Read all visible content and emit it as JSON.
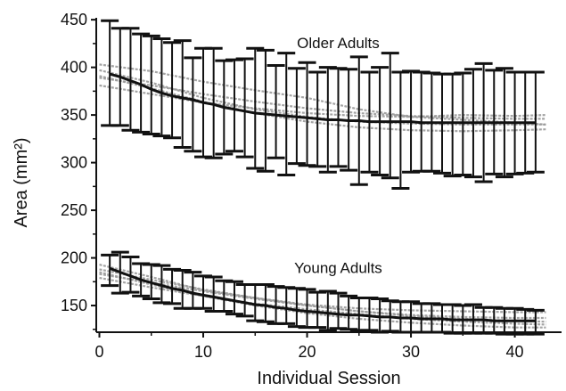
{
  "chart_data": {
    "type": "line",
    "xlabel": "Individual Session",
    "ylabel": "Area (mm²)",
    "xlim": [
      -0.3,
      44.5
    ],
    "ylim": [
      122,
      452
    ],
    "xticks": [
      0,
      10,
      20,
      30,
      40
    ],
    "yticks": [
      150,
      200,
      250,
      300,
      350,
      400,
      450
    ],
    "xtick_labels": [
      "0",
      "10",
      "20",
      "30",
      "40"
    ],
    "ytick_labels": [
      "150",
      "200",
      "250",
      "300",
      "350",
      "400",
      "450"
    ],
    "grid": false,
    "annotations": [
      {
        "text": "Older Adults",
        "x": 23,
        "y": 420
      },
      {
        "text": "Young Adults",
        "x": 23,
        "y": 184
      }
    ],
    "colors": {
      "fit": "#111111",
      "error_bars": "#111111",
      "individual": "#9a9a9a",
      "axes": "#111111"
    },
    "series": [
      {
        "group": "Older Adults",
        "x": [
          1,
          2,
          3,
          4,
          5,
          6,
          7,
          8,
          9,
          10,
          11,
          12,
          13,
          14,
          15,
          16,
          17,
          18,
          19,
          20,
          21,
          22,
          23,
          24,
          25,
          26,
          27,
          28,
          29,
          30,
          31,
          32,
          33,
          34,
          35,
          36,
          37,
          38,
          39,
          40,
          41,
          42
        ],
        "mean": [
          393,
          390,
          386,
          382,
          377,
          373,
          370,
          368,
          366,
          363,
          361,
          358,
          356,
          354,
          352,
          351,
          350,
          349,
          348,
          347,
          346,
          345,
          345,
          344,
          344,
          343,
          343,
          343,
          343,
          343,
          342,
          342,
          342,
          342,
          342,
          342,
          342,
          342,
          342,
          342,
          342,
          342
        ],
        "upper": [
          449,
          441,
          441,
          435,
          433,
          430,
          426,
          428,
          410,
          420,
          420,
          407,
          408,
          409,
          420,
          418,
          402,
          415,
          399,
          405,
          395,
          400,
          399,
          398,
          411,
          395,
          400,
          415,
          395,
          396,
          395,
          394,
          393,
          393,
          394,
          398,
          404,
          397,
          399,
          395,
          395,
          395
        ],
        "lower": [
          339,
          339,
          334,
          332,
          330,
          328,
          326,
          316,
          312,
          306,
          305,
          309,
          312,
          306,
          294,
          291,
          305,
          287,
          299,
          297,
          296,
          290,
          296,
          292,
          277,
          290,
          287,
          284,
          273,
          290,
          291,
          291,
          289,
          286,
          287,
          285,
          280,
          288,
          285,
          288,
          289,
          290
        ]
      },
      {
        "group": "Young Adults",
        "x": [
          1,
          2,
          3,
          4,
          5,
          6,
          7,
          8,
          9,
          10,
          11,
          12,
          13,
          14,
          15,
          16,
          17,
          18,
          19,
          20,
          21,
          22,
          23,
          24,
          25,
          26,
          27,
          28,
          29,
          30,
          31,
          32,
          33,
          34,
          35,
          36,
          37,
          38,
          39,
          40,
          41,
          42
        ],
        "mean": [
          189,
          185,
          181,
          177,
          174,
          171,
          168,
          166,
          163,
          161,
          159,
          157,
          155,
          153,
          151,
          150,
          148,
          147,
          145,
          144,
          143,
          142,
          141,
          140,
          140,
          139,
          138,
          138,
          137,
          137,
          136,
          136,
          136,
          135,
          135,
          135,
          135,
          134,
          134,
          134,
          134,
          134
        ],
        "upper": [
          203,
          206,
          201,
          194,
          193,
          192,
          188,
          187,
          185,
          181,
          180,
          176,
          175,
          172,
          172,
          172,
          170,
          169,
          168,
          167,
          164,
          165,
          163,
          160,
          158,
          158,
          157,
          155,
          154,
          154,
          152,
          152,
          151,
          151,
          150,
          151,
          148,
          148,
          147,
          147,
          146,
          145
        ],
        "lower": [
          171,
          163,
          164,
          160,
          157,
          153,
          152,
          147,
          147,
          147,
          144,
          144,
          141,
          139,
          134,
          133,
          131,
          131,
          128,
          127,
          127,
          124,
          126,
          125,
          124,
          124,
          122,
          123,
          122,
          122,
          122,
          122,
          122,
          121,
          121,
          121,
          121,
          121,
          120,
          120,
          120,
          120
        ]
      }
    ],
    "individual_traces": [
      {
        "group": "Older Adults",
        "x": [
          0,
          5,
          10,
          15,
          20,
          25,
          30,
          35,
          40,
          43
        ],
        "y": [
          403,
          396,
          385,
          376,
          368,
          356,
          348,
          345,
          342,
          340
        ]
      },
      {
        "group": "Older Adults",
        "x": [
          0,
          5,
          10,
          15,
          20,
          25,
          30,
          35,
          40,
          43
        ],
        "y": [
          389,
          381,
          372,
          364,
          357,
          352,
          349,
          347,
          346,
          346
        ]
      },
      {
        "group": "Older Adults",
        "x": [
          0,
          5,
          10,
          15,
          20,
          25,
          30,
          35,
          40,
          43
        ],
        "y": [
          397,
          384,
          368,
          356,
          348,
          343,
          341,
          340,
          340,
          340
        ]
      },
      {
        "group": "Older Adults",
        "x": [
          0,
          5,
          10,
          15,
          20,
          25,
          30,
          35,
          40,
          43
        ],
        "y": [
          381,
          372,
          363,
          357,
          352,
          349,
          348,
          350,
          349,
          350
        ]
      },
      {
        "group": "Older Adults",
        "x": [
          0,
          5,
          10,
          15,
          20,
          25,
          30,
          35,
          40,
          43
        ],
        "y": [
          391,
          378,
          364,
          352,
          343,
          337,
          334,
          333,
          334,
          335
        ]
      },
      {
        "group": "Young Adults",
        "x": [
          0,
          5,
          10,
          15,
          20,
          25,
          30,
          35,
          40,
          43
        ],
        "y": [
          193,
          180,
          166,
          158,
          151,
          147,
          145,
          144,
          143,
          143
        ]
      },
      {
        "group": "Young Adults",
        "x": [
          0,
          5,
          10,
          15,
          20,
          25,
          30,
          35,
          40,
          43
        ],
        "y": [
          188,
          177,
          167,
          158,
          150,
          144,
          140,
          138,
          137,
          137
        ]
      },
      {
        "group": "Young Adults",
        "x": [
          0,
          5,
          10,
          15,
          20,
          25,
          30,
          35,
          40,
          43
        ],
        "y": [
          183,
          174,
          165,
          157,
          150,
          144,
          139,
          136,
          134,
          133
        ]
      },
      {
        "group": "Young Adults",
        "x": [
          0,
          5,
          10,
          15,
          20,
          25,
          30,
          35,
          40,
          43
        ],
        "y": [
          179,
          169,
          160,
          152,
          146,
          141,
          136,
          133,
          131,
          130
        ]
      },
      {
        "group": "Young Adults",
        "x": [
          0,
          5,
          10,
          15,
          20,
          25,
          30,
          35,
          40,
          43
        ],
        "y": [
          185,
          172,
          160,
          150,
          142,
          136,
          132,
          129,
          127,
          127
        ]
      }
    ]
  }
}
